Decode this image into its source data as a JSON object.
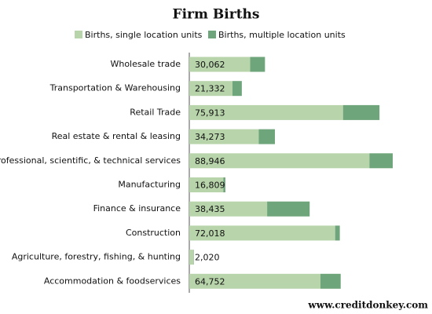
{
  "chart_data": {
    "type": "stacked-barh",
    "title": "Firm Births",
    "categories": [
      "Wholesale trade",
      "Transportation & Warehousing",
      "Retail Trade",
      "Real estate & rental & leasing",
      "Professional, scientific, & technical services",
      "Manufacturing",
      "Finance & insurance",
      "Construction",
      "Agriculture, forestry, fishing, & hunting",
      "Accommodation & foodservices"
    ],
    "series": [
      {
        "name": "Births, single location units",
        "color": "#b8d4ab",
        "values": [
          30062,
          21332,
          75913,
          34273,
          88946,
          16809,
          38435,
          72018,
          2020,
          64752
        ],
        "value_labels": [
          "30,062",
          "21,332",
          "75,913",
          "34,273",
          "88,946",
          "16,809",
          "38,435",
          "72,018",
          "2,020",
          "64,752"
        ]
      },
      {
        "name": "Births, multiple location units",
        "color": "#6fa57a",
        "values": [
          7300,
          4600,
          18000,
          8000,
          11500,
          1000,
          21000,
          2300,
          200,
          10000
        ]
      }
    ],
    "source": "www.creditdonkey.com"
  }
}
